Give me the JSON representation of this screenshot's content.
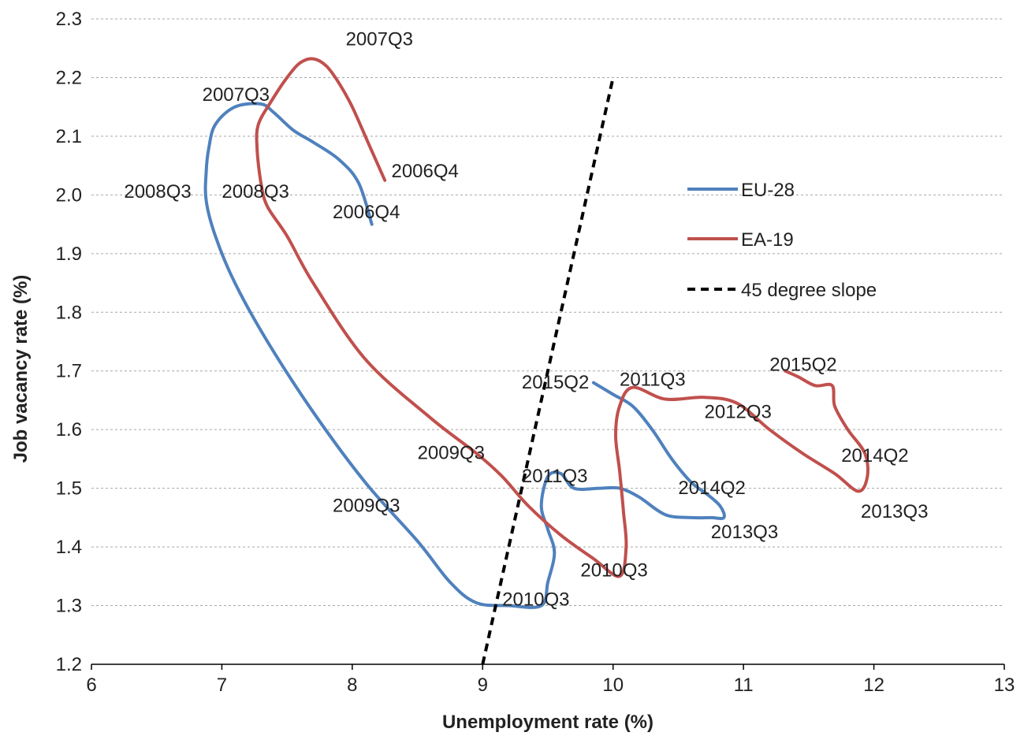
{
  "chart_data": {
    "type": "line",
    "title": "",
    "xlabel": "Unemployment rate (%)",
    "ylabel": "Job vacancy rate (%)",
    "xlim": [
      6,
      13
    ],
    "ylim": [
      1.2,
      2.3
    ],
    "x_ticks": [
      "6",
      "7",
      "8",
      "9",
      "10",
      "11",
      "12",
      "13"
    ],
    "y_ticks": [
      "1.2",
      "1.3",
      "1.4",
      "1.5",
      "1.6",
      "1.7",
      "1.8",
      "1.9",
      "2.0",
      "2.1",
      "2.2",
      "2.3"
    ],
    "grid": "horizontal dashed",
    "legend_position": "right",
    "series": [
      {
        "name": "EU-28",
        "color": "#4f81bd",
        "style": "solid",
        "points": [
          [
            8.15,
            1.95
          ],
          [
            8.05,
            2.02
          ],
          [
            7.9,
            2.06
          ],
          [
            7.7,
            2.09
          ],
          [
            7.55,
            2.11
          ],
          [
            7.4,
            2.14
          ],
          [
            7.3,
            2.155
          ],
          [
            7.1,
            2.15
          ],
          [
            6.95,
            2.12
          ],
          [
            6.9,
            2.08
          ],
          [
            6.88,
            2.04
          ],
          [
            6.88,
            1.99
          ],
          [
            6.95,
            1.93
          ],
          [
            7.1,
            1.85
          ],
          [
            7.35,
            1.75
          ],
          [
            7.7,
            1.63
          ],
          [
            8.1,
            1.51
          ],
          [
            8.5,
            1.41
          ],
          [
            8.75,
            1.34
          ],
          [
            8.95,
            1.305
          ],
          [
            9.2,
            1.3
          ],
          [
            9.45,
            1.3
          ],
          [
            9.5,
            1.34
          ],
          [
            9.55,
            1.39
          ],
          [
            9.5,
            1.43
          ],
          [
            9.45,
            1.47
          ],
          [
            9.5,
            1.52
          ],
          [
            9.6,
            1.525
          ],
          [
            9.7,
            1.5
          ],
          [
            9.9,
            1.5
          ],
          [
            10.05,
            1.5
          ],
          [
            10.2,
            1.485
          ],
          [
            10.4,
            1.455
          ],
          [
            10.6,
            1.45
          ],
          [
            10.75,
            1.45
          ],
          [
            10.85,
            1.45
          ],
          [
            10.82,
            1.47
          ],
          [
            10.72,
            1.49
          ],
          [
            10.6,
            1.51
          ],
          [
            10.45,
            1.55
          ],
          [
            10.3,
            1.6
          ],
          [
            10.15,
            1.64
          ],
          [
            10.0,
            1.66
          ],
          [
            9.85,
            1.68
          ]
        ]
      },
      {
        "name": "EA-19",
        "color": "#c0504d",
        "style": "solid",
        "points": [
          [
            8.25,
            2.025
          ],
          [
            8.12,
            2.09
          ],
          [
            8.0,
            2.15
          ],
          [
            7.9,
            2.19
          ],
          [
            7.8,
            2.22
          ],
          [
            7.7,
            2.232
          ],
          [
            7.6,
            2.225
          ],
          [
            7.5,
            2.2
          ],
          [
            7.38,
            2.16
          ],
          [
            7.28,
            2.12
          ],
          [
            7.27,
            2.08
          ],
          [
            7.3,
            2.02
          ],
          [
            7.35,
            1.98
          ],
          [
            7.5,
            1.93
          ],
          [
            7.7,
            1.85
          ],
          [
            8.1,
            1.72
          ],
          [
            8.6,
            1.62
          ],
          [
            8.95,
            1.56
          ],
          [
            9.15,
            1.52
          ],
          [
            9.35,
            1.47
          ],
          [
            9.6,
            1.42
          ],
          [
            9.85,
            1.38
          ],
          [
            10.05,
            1.35
          ],
          [
            10.1,
            1.4
          ],
          [
            10.08,
            1.46
          ],
          [
            10.05,
            1.53
          ],
          [
            10.02,
            1.59
          ],
          [
            10.05,
            1.64
          ],
          [
            10.15,
            1.672
          ],
          [
            10.4,
            1.652
          ],
          [
            10.7,
            1.655
          ],
          [
            10.95,
            1.645
          ],
          [
            11.2,
            1.6
          ],
          [
            11.45,
            1.56
          ],
          [
            11.7,
            1.525
          ],
          [
            11.88,
            1.495
          ],
          [
            11.95,
            1.52
          ],
          [
            11.93,
            1.56
          ],
          [
            11.8,
            1.6
          ],
          [
            11.7,
            1.64
          ],
          [
            11.68,
            1.675
          ],
          [
            11.55,
            1.675
          ],
          [
            11.42,
            1.69
          ],
          [
            11.32,
            1.7
          ]
        ]
      },
      {
        "name": "45 degree slope",
        "color": "#000000",
        "style": "dashed",
        "points": [
          [
            9.0,
            1.2
          ],
          [
            10.0,
            2.2
          ]
        ]
      }
    ],
    "annotations": [
      {
        "text": "2007Q3",
        "x": 7.95,
        "y": 2.255
      },
      {
        "text": "2007Q3",
        "x": 6.85,
        "y": 2.16
      },
      {
        "text": "2006Q4",
        "x": 8.3,
        "y": 2.03
      },
      {
        "text": "2008Q3",
        "x": 6.25,
        "y": 1.995
      },
      {
        "text": "2008Q3",
        "x": 7.0,
        "y": 1.995
      },
      {
        "text": "2006Q4",
        "x": 7.85,
        "y": 1.96
      },
      {
        "text": "2015Q2",
        "x": 9.3,
        "y": 1.67
      },
      {
        "text": "2011Q3",
        "x": 10.05,
        "y": 1.675
      },
      {
        "text": "2015Q2",
        "x": 11.2,
        "y": 1.7
      },
      {
        "text": "2012Q3",
        "x": 10.7,
        "y": 1.62
      },
      {
        "text": "2009Q3",
        "x": 8.5,
        "y": 1.55
      },
      {
        "text": "2011Q3",
        "x": 9.3,
        "y": 1.51
      },
      {
        "text": "2014Q2",
        "x": 11.75,
        "y": 1.545
      },
      {
        "text": "2014Q2",
        "x": 10.5,
        "y": 1.49
      },
      {
        "text": "2009Q3",
        "x": 7.85,
        "y": 1.46
      },
      {
        "text": "2013Q3",
        "x": 11.9,
        "y": 1.45
      },
      {
        "text": "2013Q3",
        "x": 10.75,
        "y": 1.415
      },
      {
        "text": "2010Q3",
        "x": 9.75,
        "y": 1.35
      },
      {
        "text": "2010Q3",
        "x": 9.15,
        "y": 1.3
      }
    ]
  }
}
